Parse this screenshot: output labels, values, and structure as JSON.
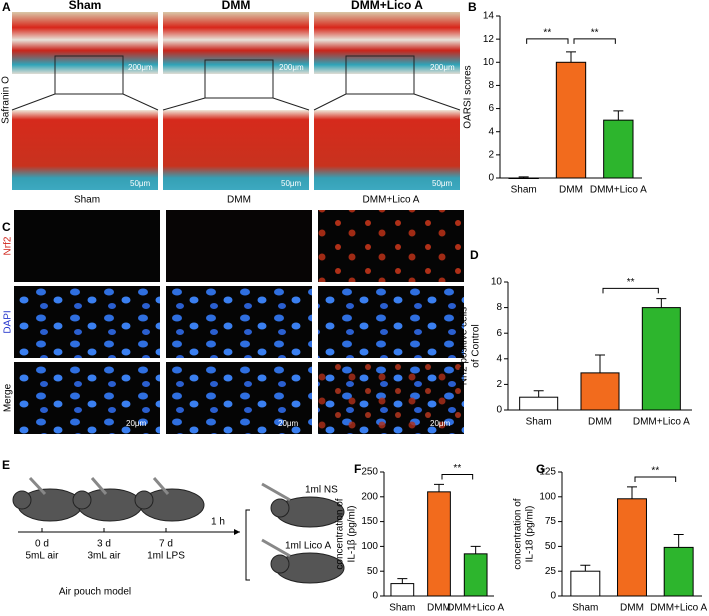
{
  "panel_a": {
    "label": "A",
    "groups": [
      "Sham",
      "DMM",
      "DMM+Lico A"
    ],
    "stain": "Safranin O",
    "scale_top": "200μm",
    "scale_bottom": "50μm"
  },
  "panel_c": {
    "label": "C",
    "groups": [
      "Sham",
      "DMM",
      "DMM+Lico A"
    ],
    "rows": [
      "Nrf2",
      "DAPI",
      "Merge"
    ],
    "scale": "20μm"
  },
  "panel_e": {
    "label": "E",
    "timepoints": [
      {
        "day": "0 d",
        "treatment": "5mL air"
      },
      {
        "day": "3 d",
        "treatment": "3mL air"
      },
      {
        "day": "7 d",
        "treatment": "1ml LPS"
      }
    ],
    "interval": "1 h",
    "groups": [
      "1ml NS",
      "1ml Lico A"
    ],
    "caption": "Air pouch model"
  },
  "chart_data": [
    {
      "type": "bar",
      "label": "B",
      "ylabel": [
        "OARSI scores"
      ],
      "categories": [
        "Sham",
        "DMM",
        "DMM+Lico A"
      ],
      "values": [
        0,
        10,
        5
      ],
      "errors": [
        0.1,
        0.9,
        0.8
      ],
      "colors": [
        "#ffffff",
        "#f26b1d",
        "#2db52d"
      ],
      "ylim": [
        0,
        14
      ],
      "yticks": [
        0,
        2,
        4,
        6,
        8,
        10,
        12,
        14
      ],
      "annotations": [
        {
          "text": "**",
          "between": [
            "Sham",
            "DMM"
          ]
        },
        {
          "text": "**",
          "between": [
            "DMM",
            "DMM+Lico A"
          ]
        }
      ]
    },
    {
      "type": "bar",
      "label": "D",
      "ylabel": [
        "Nrf2 positive cells",
        "of Control"
      ],
      "categories": [
        "Sham",
        "DMM",
        "DMM+Lico A"
      ],
      "values": [
        1,
        2.9,
        8
      ],
      "errors": [
        0.5,
        1.4,
        0.7
      ],
      "colors": [
        "#ffffff",
        "#f26b1d",
        "#2db52d"
      ],
      "ylim": [
        0,
        10
      ],
      "yticks": [
        0,
        2,
        4,
        6,
        8,
        10
      ],
      "annotations": [
        {
          "text": "**",
          "between": [
            "DMM",
            "DMM+Lico A"
          ]
        }
      ]
    },
    {
      "type": "bar",
      "label": "F",
      "ylabel": [
        "concentration of",
        "IL-1β (pg/ml)"
      ],
      "categories": [
        "Sham",
        "DMM",
        "DMM+Lico A"
      ],
      "values": [
        25,
        210,
        85
      ],
      "errors": [
        10,
        15,
        15
      ],
      "colors": [
        "#ffffff",
        "#f26b1d",
        "#2db52d"
      ],
      "ylim": [
        0,
        250
      ],
      "yticks": [
        0,
        50,
        100,
        150,
        200,
        250
      ],
      "annotations": [
        {
          "text": "**",
          "between": [
            "DMM",
            "DMM+Lico A"
          ]
        }
      ]
    },
    {
      "type": "bar",
      "label": "G",
      "ylabel": [
        "concentration of",
        "IL-18 (pg/ml)"
      ],
      "categories": [
        "Sham",
        "DMM",
        "DMM+Lico A"
      ],
      "values": [
        25,
        98,
        49
      ],
      "errors": [
        6,
        12,
        13
      ],
      "colors": [
        "#ffffff",
        "#f26b1d",
        "#2db52d"
      ],
      "ylim": [
        0,
        125
      ],
      "yticks": [
        0,
        25,
        50,
        75,
        100,
        125
      ],
      "annotations": [
        {
          "text": "**",
          "between": [
            "DMM",
            "DMM+Lico A"
          ]
        }
      ]
    }
  ]
}
